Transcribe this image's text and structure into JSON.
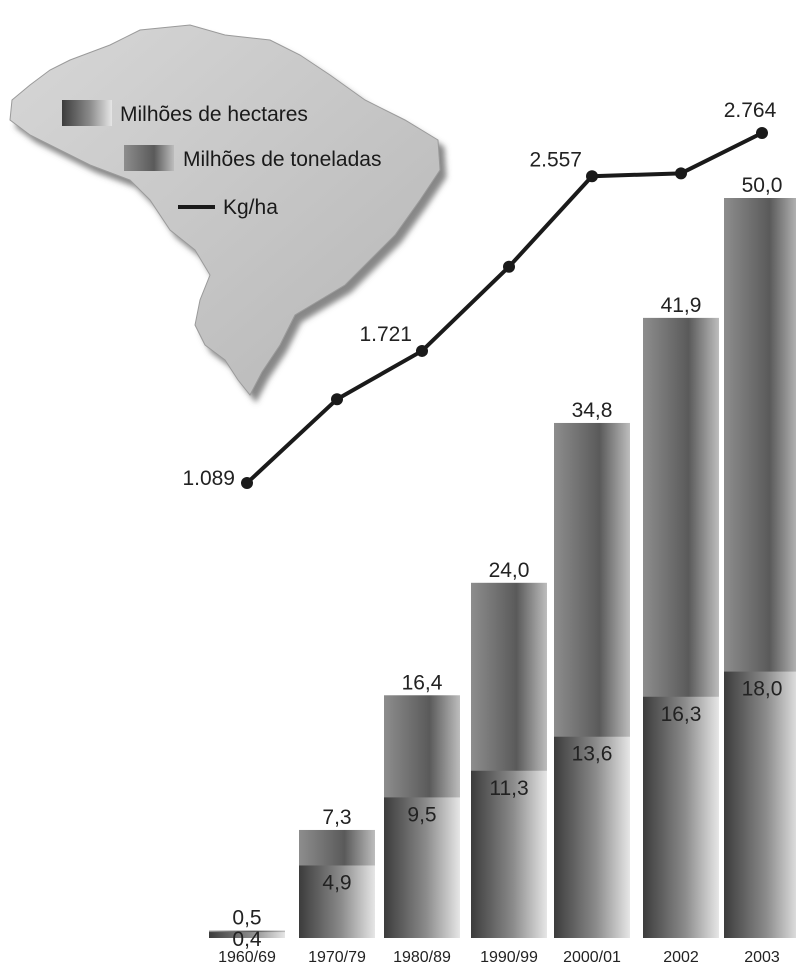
{
  "chart_data": {
    "type": "bar",
    "categories": [
      "1960/69",
      "1970/79",
      "1980/89",
      "1990/99",
      "2000/01",
      "2002",
      "2003"
    ],
    "series": [
      {
        "name": "Milhões de hectares",
        "type": "bar",
        "values": [
          0.4,
          4.9,
          9.5,
          11.3,
          13.6,
          16.3,
          18.0
        ],
        "labels": [
          "0,4",
          "4,9",
          "9,5",
          "11,3",
          "13,6",
          "16,3",
          "18,0"
        ]
      },
      {
        "name": "Milhões de toneladas",
        "type": "bar",
        "values": [
          0.5,
          7.3,
          16.4,
          24.0,
          34.8,
          41.9,
          50.0
        ],
        "labels": [
          "0,5",
          "7,3",
          "16,4",
          "24,0",
          "34,8",
          "41,9",
          "50,0"
        ]
      },
      {
        "name": "Kg/ha",
        "type": "line",
        "values": [
          1089,
          1490,
          1721,
          2124,
          2557,
          2571,
          2764
        ],
        "labels": [
          "1.089",
          "",
          "1.721",
          "",
          "2.557",
          "",
          "2.764"
        ]
      }
    ],
    "ylim": [
      0,
      50
    ]
  },
  "colors": {
    "bar_light": "#d9d9d9",
    "bar_dark": "#4a4a4a",
    "line": "#1a1a1a",
    "map": "#c9c9c9"
  },
  "legend": [
    {
      "label": "Milhões de hectares",
      "icon": "gradient-square-icon"
    },
    {
      "label": "Milhões de toneladas",
      "icon": "gradient-square-icon"
    },
    {
      "label": "Kg/ha",
      "icon": "line-icon"
    }
  ]
}
